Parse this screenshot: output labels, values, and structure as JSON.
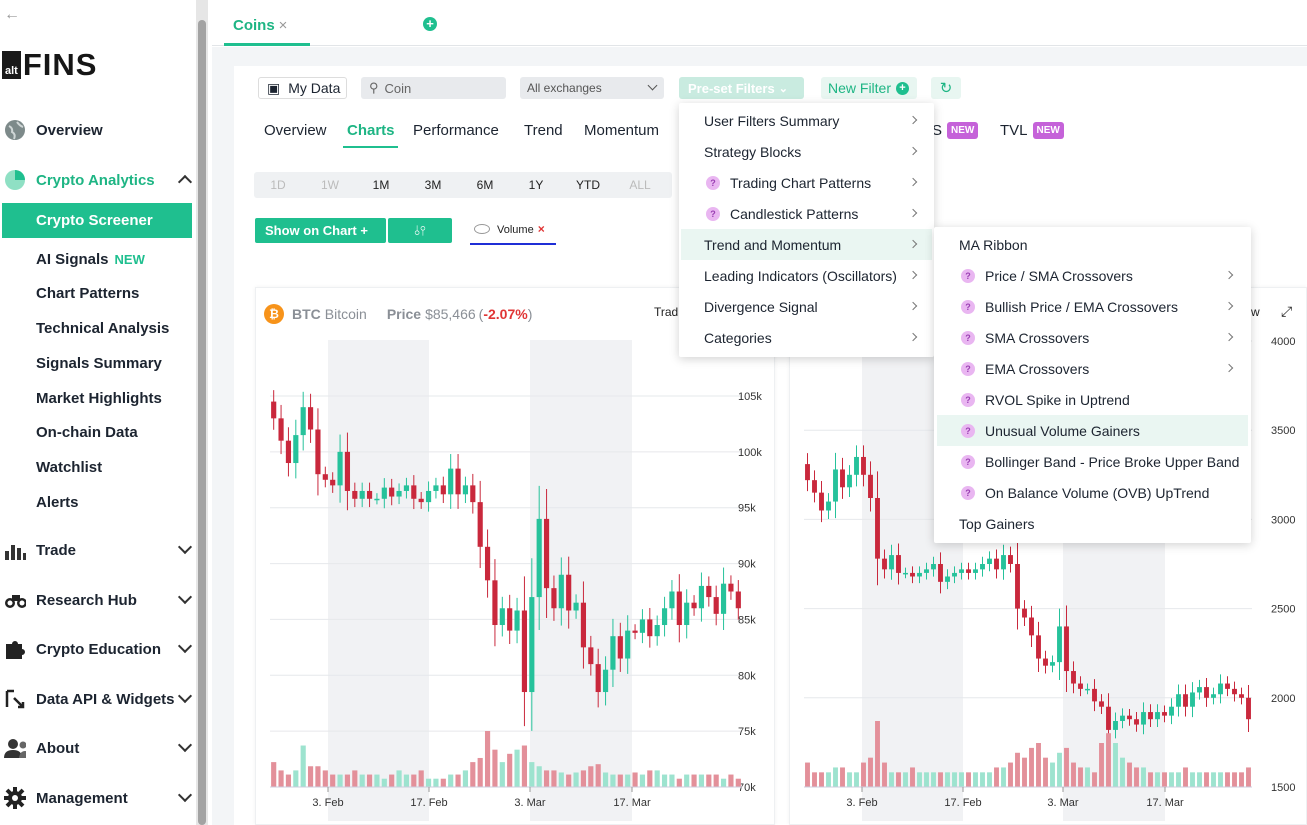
{
  "sidebar": {
    "back_icon": "arrow-left-icon",
    "logo_alt": "alt",
    "logo_fins": "FINS",
    "overview": "Overview",
    "crypto_analytics": "Crypto Analytics",
    "active_item": "Crypto Screener",
    "sub_items": [
      "AI Signals",
      "Chart Patterns",
      "Technical Analysis",
      "Signals Summary",
      "Market Highlights",
      "On-chain Data",
      "Watchlist",
      "Alerts"
    ],
    "ai_signals_badge": "NEW",
    "trade": "Trade",
    "research_hub": "Research Hub",
    "crypto_education": "Crypto Education",
    "data_api": "Data API & Widgets",
    "about": "About",
    "management": "Management",
    "accent_color": "#1fbf8f"
  },
  "tabs": {
    "coins": "Coins",
    "close": "×",
    "add": "+"
  },
  "toolbar": {
    "my_data": "My Data",
    "coin_placeholder": "Coin",
    "exchanges": "All exchanges",
    "preset_filters": "Pre-set Filters",
    "new_filter": "New Filter",
    "refresh": "↻"
  },
  "subtabs": {
    "overview": "Overview",
    "charts": "Charts",
    "performance": "Performance",
    "trend": "Trend",
    "momentum": "Momentum",
    "s_label": "S",
    "tvl": "TVL",
    "new": "NEW"
  },
  "periods": [
    "1D",
    "1W",
    "1M",
    "3M",
    "6M",
    "1Y",
    "YTD",
    "ALL"
  ],
  "show_on_chart": "Show on Chart +",
  "indicator_icon": "⫰⫯",
  "volume_tag": "Volume",
  "volume_remove": "×",
  "btc_card": {
    "symbol": "BTC",
    "name": "Bitcoin",
    "price_label": "Price",
    "price": "$85,466",
    "change_open": "(",
    "change": "-2.07%",
    "change_close": ")",
    "trad": "Trad",
    "w": "w",
    "expand": "⤢"
  },
  "preset_menu": [
    {
      "label": "User Filters Summary",
      "help": false
    },
    {
      "label": "Strategy Blocks",
      "help": false
    },
    {
      "label": "Trading Chart Patterns",
      "help": true
    },
    {
      "label": "Candlestick Patterns",
      "help": true
    },
    {
      "label": "Trend and Momentum",
      "help": false
    },
    {
      "label": "Leading Indicators (Oscillators)",
      "help": false
    },
    {
      "label": "Divergence Signal",
      "help": false
    },
    {
      "label": "Categories",
      "help": false
    }
  ],
  "trend_menu": [
    {
      "label": "MA Ribbon",
      "help": false,
      "arrow": false
    },
    {
      "label": "Price / SMA Crossovers",
      "help": true,
      "arrow": true
    },
    {
      "label": "Bullish Price / EMA Crossovers",
      "help": true,
      "arrow": true
    },
    {
      "label": "SMA Crossovers",
      "help": true,
      "arrow": true
    },
    {
      "label": "EMA Crossovers",
      "help": true,
      "arrow": true
    },
    {
      "label": "RVOL Spike in Uptrend",
      "help": true,
      "arrow": false
    },
    {
      "label": "Unusual Volume Gainers",
      "help": true,
      "arrow": false
    },
    {
      "label": "Bollinger Band - Price Broke Upper Band",
      "help": true,
      "arrow": false
    },
    {
      "label": "On Balance Volume (OVB) UpTrend",
      "help": true,
      "arrow": false
    },
    {
      "label": "Top Gainers",
      "help": false,
      "arrow": false
    }
  ],
  "help_glyph": "?",
  "chart_data": [
    {
      "type": "candlestick",
      "title": "BTC Bitcoin",
      "x_ticks": [
        "3. Feb",
        "17. Feb",
        "3. Mar",
        "17. Mar"
      ],
      "y_ticks": [
        "105k",
        "100k",
        "95k",
        "90k",
        "85k",
        "80k",
        "75k",
        "70k"
      ],
      "ylim": [
        70000,
        108000
      ],
      "close": [
        103000,
        101000,
        99000,
        101500,
        104000,
        102000,
        98000,
        97500,
        97000,
        100000,
        96500,
        95800,
        96500,
        95800,
        95800,
        96800,
        96000,
        96500,
        97000,
        95800,
        95500,
        96500,
        97000,
        96200,
        98500,
        96200,
        97000,
        95500,
        91500,
        88500,
        84500,
        86000,
        84000,
        85800,
        78500,
        87000,
        94000,
        87800,
        86000,
        89000,
        85800,
        86500,
        82500,
        81000,
        78500,
        80500,
        83500,
        81500,
        84000,
        83800,
        85000,
        83500,
        84500,
        86000,
        87500,
        84500,
        86500,
        86000,
        88000,
        87000,
        85500,
        88200,
        87500,
        86000
      ],
      "volume_relative": [
        0.6,
        0.4,
        0.3,
        0.4,
        1.0,
        0.5,
        0.5,
        0.4,
        0.3,
        0.3,
        0.3,
        0.4,
        0.3,
        0.3,
        0.3,
        0.2,
        0.3,
        0.4,
        0.3,
        0.3,
        0.4,
        0.2,
        0.2,
        0.2,
        0.3,
        0.3,
        0.4,
        0.6,
        0.7,
        1.35,
        0.9,
        0.6,
        0.8,
        0.9,
        1.0,
        0.6,
        0.5,
        0.4,
        0.4,
        0.35,
        0.3,
        0.35,
        0.4,
        0.5,
        0.55,
        0.35,
        0.3,
        0.3,
        0.3,
        0.35,
        0.3,
        0.4,
        0.4,
        0.3,
        0.3,
        0.2,
        0.3,
        0.3,
        0.3,
        0.3,
        0.3,
        0.2,
        0.3,
        0.2
      ]
    },
    {
      "type": "candlestick",
      "x_ticks": [
        "3. Feb",
        "17. Feb",
        "3. Mar",
        "17. Mar"
      ],
      "y_ticks": [
        "4000",
        "3500",
        "3000",
        "2500",
        "2000",
        "1500"
      ],
      "ylim": [
        1500,
        4000
      ],
      "close": [
        3220,
        3150,
        3050,
        3100,
        3280,
        3180,
        3250,
        3350,
        3250,
        3120,
        2780,
        2720,
        2800,
        2700,
        2700,
        2680,
        2700,
        2720,
        2750,
        2650,
        2680,
        2700,
        2720,
        2700,
        2720,
        2750,
        2780,
        2720,
        2800,
        2750,
        2500,
        2450,
        2350,
        2220,
        2180,
        2200,
        2400,
        2150,
        2080,
        2050,
        2050,
        1980,
        1950,
        1820,
        1870,
        1900,
        1880,
        1850,
        1920,
        1880,
        1920,
        1900,
        1950,
        2020,
        1950,
        2030,
        2060,
        2000,
        2020,
        2080,
        2050,
        2020,
        2000,
        1880
      ],
      "volume_relative": [
        0.5,
        0.3,
        0.3,
        0.3,
        0.4,
        0.4,
        0.3,
        0.3,
        0.5,
        0.6,
        1.35,
        0.5,
        0.3,
        0.3,
        0.3,
        0.4,
        0.3,
        0.3,
        0.3,
        0.3,
        0.3,
        0.3,
        0.3,
        0.3,
        0.3,
        0.3,
        0.3,
        0.4,
        0.4,
        0.5,
        0.7,
        0.6,
        0.8,
        0.9,
        0.6,
        0.5,
        0.7,
        0.8,
        0.5,
        0.4,
        0.4,
        0.3,
        0.9,
        1.1,
        0.9,
        0.6,
        0.5,
        0.4,
        0.4,
        0.3,
        0.3,
        0.3,
        0.3,
        0.3,
        0.4,
        0.3,
        0.3,
        0.3,
        0.3,
        0.3,
        0.3,
        0.3,
        0.3,
        0.4
      ]
    }
  ]
}
